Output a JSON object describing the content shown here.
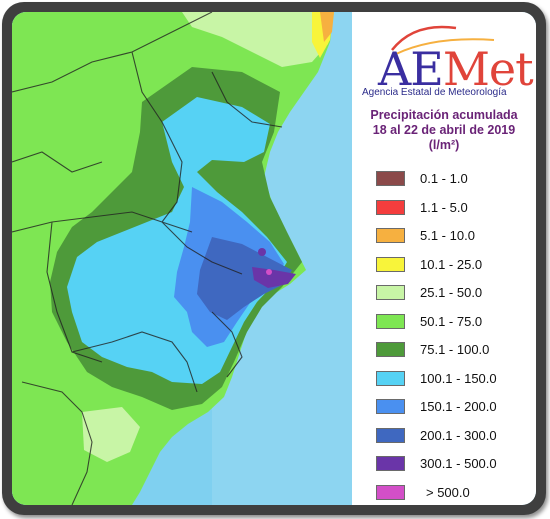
{
  "logo": {
    "primary": "AE",
    "secondary": "Met",
    "subtitle": "Agencia Estatal de Meteorología"
  },
  "title": {
    "line1": "Precipitación acumulada",
    "line2": "18 al 22 de abril de 2019",
    "unit": "(l/m²)"
  },
  "legend": [
    {
      "label": "0.1 - 1.0",
      "color": "#8b4a4a"
    },
    {
      "label": "1.1 - 5.0",
      "color": "#f43d3d"
    },
    {
      "label": "5.1 - 10.0",
      "color": "#f6b040"
    },
    {
      "label": "10.1 - 25.0",
      "color": "#f8f43a"
    },
    {
      "label": "25.1 - 50.0",
      "color": "#c8f5a6"
    },
    {
      "label": "50.1 - 75.0",
      "color": "#7ee653"
    },
    {
      "label": "75.1 - 100.0",
      "color": "#4e9a3a"
    },
    {
      "label": "100.1 - 150.0",
      "color": "#56d2f4"
    },
    {
      "label": "150.1 - 200.0",
      "color": "#4a90f0"
    },
    {
      "label": "200.1 - 300.0",
      "color": "#3f68c0"
    },
    {
      "label": "300.1 - 500.0",
      "color": "#6a35a8"
    },
    {
      "label": "> 500.0",
      "color": "#d34fc8"
    }
  ],
  "colors": {
    "sea": "#7fd0f0",
    "frame": "#3f3f3f",
    "title": "#6a2377",
    "logo_primary": "#3a2ea0",
    "logo_accent": "#e0443a"
  }
}
